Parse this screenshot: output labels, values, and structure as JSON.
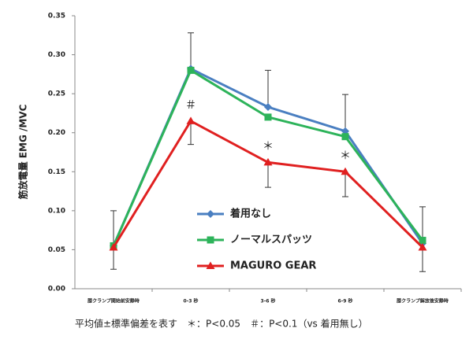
{
  "chart_data": {
    "type": "line",
    "y_label": "筋放電量 EMG /MVC",
    "footnote": "平均値±標準偏差を表す　＊：P<0.05　＃：P<0.1（vs 着用無し）",
    "categories": [
      "膝クランプ開始前安静時",
      "0-3 秒",
      "3-6 秒",
      "6-9 秒",
      "膝クランプ解放後安静時"
    ],
    "series": [
      {
        "name": "着用なし",
        "color": "#4a7fc1",
        "marker": "diamond",
        "values": [
          0.055,
          0.282,
          0.233,
          0.202,
          0.058
        ],
        "errors": [
          0.045,
          0.046,
          0.047,
          0.047,
          0.047
        ],
        "error_dir": "up"
      },
      {
        "name": "ノーマルスパッツ",
        "color": "#2db35a",
        "marker": "square",
        "values": [
          0.055,
          0.28,
          0.22,
          0.195,
          0.062
        ]
      },
      {
        "name": "MAGURO GEAR",
        "color": "#e02020",
        "marker": "triangle",
        "values": [
          0.053,
          0.215,
          0.162,
          0.15,
          0.053
        ],
        "errors": [
          0.028,
          0.03,
          0.032,
          0.032,
          0.031
        ],
        "error_dir": "down",
        "markers": [
          null,
          "＃",
          "＊",
          "＊",
          null
        ]
      }
    ],
    "ylim": [
      0,
      0.35
    ],
    "yticks": [
      {
        "value": 0,
        "label": "0.00"
      },
      {
        "value": 0.05,
        "label": "0.05"
      },
      {
        "value": 0.1,
        "label": "0.10"
      },
      {
        "value": 0.15,
        "label": "0.15"
      },
      {
        "value": 0.2,
        "label": "0.20"
      },
      {
        "value": 0.25,
        "label": "0.25"
      },
      {
        "value": 0.3,
        "label": "0.30"
      },
      {
        "value": 0.35,
        "label": "0.35"
      }
    ],
    "grid": false
  }
}
